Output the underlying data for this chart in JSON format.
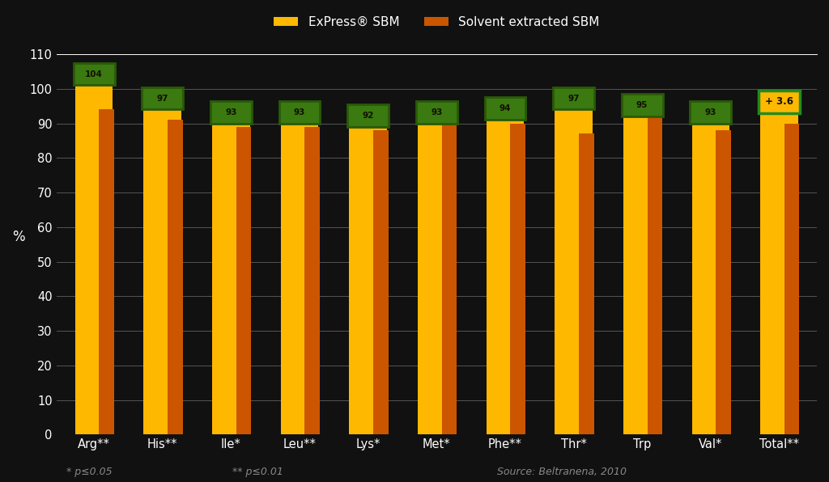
{
  "categories": [
    "Arg**",
    "His**",
    "Ile*",
    "Leu**",
    "Lys*",
    "Met*",
    "Phe**",
    "Thr*",
    "Trp",
    "Val*",
    "Total**"
  ],
  "express_values": [
    104,
    97,
    93,
    93,
    92,
    93,
    94,
    97,
    95,
    93,
    96
  ],
  "solvent_values": [
    94,
    91,
    89,
    89,
    88,
    90,
    90,
    87,
    93,
    88,
    90
  ],
  "express_labels": [
    "104",
    "97",
    "93",
    "93",
    "92",
    "93",
    "94",
    "97",
    "95",
    "93",
    ""
  ],
  "express_color": "#FFB800",
  "solvent_color": "#CC5500",
  "box_facecolor": "#3a7a10",
  "box_edgecolor": "#2a5a08",
  "label_text_color": "#111100",
  "background_color": "#111111",
  "grid_color": "#555555",
  "ylabel": "%",
  "ylim": [
    0,
    110
  ],
  "yticks": [
    0,
    10,
    20,
    30,
    40,
    50,
    60,
    70,
    80,
    90,
    100,
    110
  ],
  "legend_express": "ExPress® SBM",
  "legend_solvent": "Solvent extracted SBM",
  "total_annotation": "+ 3.6",
  "bottom_text_left": "* p≤0.05",
  "bottom_text_mid": "** p≤0.01",
  "bottom_text_right": "Source: Beltranena, 2010"
}
